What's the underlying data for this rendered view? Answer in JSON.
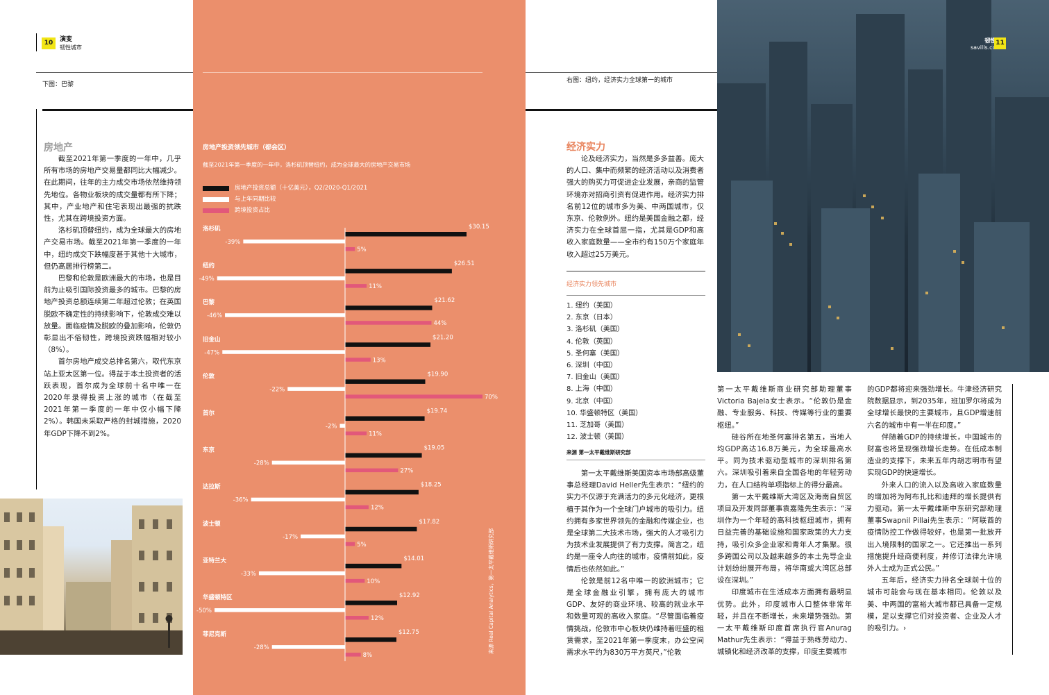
{
  "header_left": {
    "page_number": "10",
    "title": "演变",
    "subtitle": "韧性城市"
  },
  "header_right": {
    "brand": "savills.com",
    "title": "韧性力",
    "page_number": "11"
  },
  "captions": {
    "left": "下图：巴黎",
    "right": "右图：纽约，经济实力全球第一的城市"
  },
  "left_section": {
    "title": "房地产",
    "paragraphs": [
      "截至2021年第一季度的一年中，几乎所有市场的房地产交易量都同比大幅减少。在此期间，往年的主力成交市场依然维持领先地位。各物业板块的成交量都有所下降；其中，产业地产和住宅表现出最强的抗跌性，尤其在跨境投资方面。",
      "洛杉矶顶替纽约，成为全球最大的房地产交易市场。截至2021年第一季度的一年中，纽约成交下跌幅度甚于其他十大城市，但仍高居排行榜第二。",
      "巴黎和伦敦是欧洲最大的市场，也是目前为止吸引国际投资最多的城市。巴黎的房地产投资总额连续第二年超过伦敦；在英国脱欧不确定性的持续影响下，伦敦成交难以放量。面临疫情及脱欧的叠加影响，伦敦仍彰显出不俗韧性，跨境投资跌幅相对较小（8%）。",
      "首尔房地产成交总排名第六，取代东京站上亚太区第一位。得益于本土投资者的活跃表现，首尔成为全球前十名中唯一在2020年录得投资上涨的城市（在截至2021年第一季度的一年中仅小幅下降2%）。韩国未采取严格的封城措施，2020年GDP下降不到2%。"
    ]
  },
  "chart_data": {
    "type": "bar",
    "title": "房地产投资领先城市（都会区）",
    "subtitle": "截至2021年第一季度的一年中，洛杉矶顶替纽约，成为全球最大的房地产交易市场",
    "source": "来源 Real Capital Analytics，第一太平戴维斯研究部",
    "categories": [
      "洛杉矶",
      "纽约",
      "巴黎",
      "旧金山",
      "伦敦",
      "首尔",
      "东京",
      "达拉斯",
      "波士顿",
      "亚特兰大",
      "华盛顿特区",
      "菲尼克斯"
    ],
    "series": [
      {
        "name": "房地产投资总额（十亿美元），Q2/2020-Q1/2021",
        "color": "#111111",
        "values": [
          30.15,
          26.51,
          21.62,
          21.2,
          19.9,
          19.74,
          19.05,
          18.25,
          17.82,
          14.01,
          12.92,
          12.75
        ],
        "labels": [
          "$30.15",
          "$26.51",
          "$21.62",
          "$21.20",
          "$19.90",
          "$19.74",
          "$19.05",
          "$18.25",
          "$17.82",
          "$14.01",
          "$12.92",
          "$12.75"
        ]
      },
      {
        "name": "与上年同期比较",
        "color": "#ffffff",
        "values": [
          -39,
          -49,
          -46,
          -47,
          -22,
          -2,
          -28,
          -36,
          -17,
          -33,
          -50,
          -28
        ],
        "labels": [
          "-39%",
          "-49%",
          "-46%",
          "-47%",
          "-22%",
          "-2%",
          "-28%",
          "-36%",
          "-17%",
          "-33%",
          "-50%",
          "-28%"
        ]
      },
      {
        "name": "跨境投资占比",
        "color": "#e2587a",
        "values": [
          5,
          11,
          44,
          13,
          70,
          11,
          27,
          12,
          5,
          10,
          12,
          8
        ],
        "labels": [
          "5%",
          "11%",
          "44%",
          "13%",
          "70%",
          "11%",
          "27%",
          "12%",
          "5%",
          "10%",
          "12%",
          "8%"
        ]
      }
    ]
  },
  "right_section": {
    "title": "经济实力",
    "intro": "论及经济实力，当然是多多益善。庞大的人口、集中而频繁的经济活动以及消费者强大的购买力可促进企业发展，亲商的监管环境亦对招商引资有促进作用。经济实力排名前12位的城市多为美、中两国城市，仅东京、伦敦例外。纽约是美国金融之都，经济实力在全球首屈一指，尤其是GDP和高收入家庭数量——全市约有150万个家庭年收入超过25万美元。",
    "list_title": "经济实力领先城市",
    "list": [
      "1. 纽约（美国）",
      "2. 东京（日本）",
      "3. 洛杉矶（美国）",
      "4. 伦敦（英国）",
      "5. 圣何塞（美国）",
      "6. 深圳（中国）",
      "7. 旧金山（美国）",
      "8. 上海（中国）",
      "9. 北京（中国）",
      "10. 华盛顿特区（美国）",
      "11. 芝加哥（美国）",
      "12. 波士顿（美国）"
    ],
    "list_source": "来源  第一太平戴维斯研究部",
    "col1": [
      "第一太平戴维斯美国资本市场部高级董事总经理David Heller先生表示：“纽约的实力不仅源于充满活力的多元化经济，更根植于其作为一个全球门户城市的吸引力。纽约拥有多家世界领先的金融和传媒企业，也是全球第二大技术市场，强大的人才吸引力为技术业发展提供了有力支撑。简言之，纽约是一座令人向往的城市，疫情前如此，疫情后也依然如此。”",
      "伦敦是前12名中唯一的欧洲城市；它是全球金融业引擎，拥有庞大的城市GDP、友好的商业环境、较高的就业水平和数量可观的高收入家庭。“尽管面临着疫情挑战，伦敦市中心板块仍维持着旺盛的租赁需求，至2021年第一季度末，办公空间需求水平约为830万平方英尺，”伦敦"
    ],
    "col2": [
      "第一太平戴维斯商业研究部助理董事Victoria Bajela女士表示。“伦敦仍是金融、专业服务、科技、传媒等行业的重要枢纽。”",
      "硅谷所在地圣何塞排名第五，当地人均GDP高达16.8万美元，为全球最高水平。同为技术驱动型城市的深圳排名第六。深圳吸引着来自全国各地的年轻劳动力，在人口结构单项指标上的得分最高。",
      "第一太平戴维斯大湾区及海南自贸区项目及开发同部董事袁嘉隆先生表示：“深圳作为一个年轻的高科技枢纽城市，拥有日益完善的基础设施和国家政策的大力支持，吸引众多企业家和青年人才集聚。很多跨国公司以及越来越多的本土先导企业计划纷纷展开布局，将华南或大湾区总部设在深圳。”",
      "印度城市在生活成本方面拥有最明显优势。此外，印度城市人口整体非常年轻，并且在不断增长，未来增势强劲。第一太平戴维斯印度首席执行官Anurag Mathur先生表示：“得益于熟练劳动力、城镇化和经济改革的支撑，印度主要城市"
    ],
    "col3": [
      "的GDP都将迎来强劲增长。牛津经济研究院数据显示，到2035年，班加罗尔将成为全球增长最快的主要城市，且GDP增速前六名的城市中有一半在印度。”",
      "伴随着GDP的持续增长，中国城市的财富也将呈现强劲增长走势。在低成本制造业的支撑下，未来五年内胡志明市有望实现GDP的快速增长。",
      "外来人口的流入以及高收入家庭数量的增加将为阿布扎比和迪拜的增长提供有力驱动。第一太平戴维斯中东研究部助理董事Swapnil Pillai先生表示：“阿联酋的疫情防控工作做得较好，也是第一批放开出入境限制的国家之一。它还推出一系列措施提升经商便利度，并修订法律允许境外人士成为正式公民。”",
      "五年后，经济实力排名全球前十位的城市可能会与现在基本相同。伦敦以及美、中两国的富裕大城市都已具备一定规模，足以支撑它们对投资者、企业及人才的吸引力。›"
    ]
  }
}
